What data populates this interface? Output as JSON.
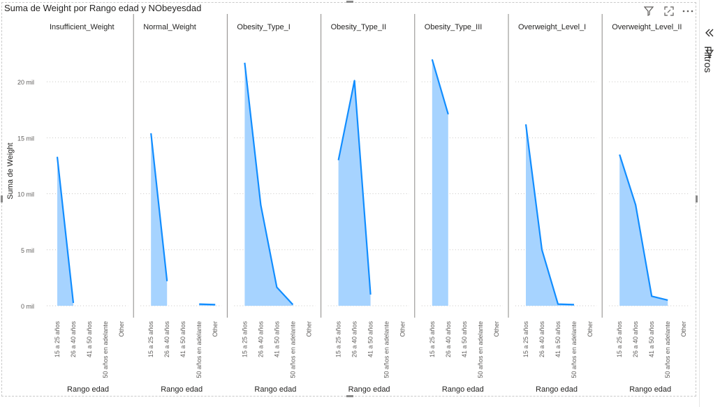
{
  "visual": {
    "title": "Suma de Weight por Rango edad y NObeyesdad",
    "icons": [
      "filter-icon",
      "focus-mode-icon",
      "more-options-icon"
    ]
  },
  "filters_pane": {
    "label": "Filtros",
    "collapse_icon": "double-chevron-left-icon",
    "filter_icon": "filter-icon"
  },
  "chart_data": {
    "type": "area",
    "title": "Suma de Weight por Rango edad y NObeyesdad",
    "xlabel": "Rango edad",
    "ylabel": "Suma de Weight",
    "categories": [
      "15 a 25 años",
      "26 a 40 años",
      "41 a 50 años",
      "50 años en adelante",
      "Other"
    ],
    "yticks": [
      0,
      5000,
      10000,
      15000,
      20000
    ],
    "ytick_labels": [
      "0 mil",
      "5 mil",
      "10 mil",
      "15 mil",
      "20 mil"
    ],
    "ylim": [
      0,
      22500
    ],
    "grid": true,
    "color": "#118dff",
    "fill_color": "#a6d3ff",
    "panels": [
      {
        "name": "Insufficient_Weight",
        "values": [
          13300,
          250,
          null,
          null,
          null
        ]
      },
      {
        "name": "Normal_Weight",
        "values": [
          15400,
          2200,
          null,
          150,
          100
        ]
      },
      {
        "name": "Obesity_Type_I",
        "values": [
          21700,
          9000,
          1650,
          100,
          null
        ]
      },
      {
        "name": "Obesity_Type_II",
        "values": [
          13000,
          20100,
          1000,
          null,
          null
        ]
      },
      {
        "name": "Obesity_Type_III",
        "values": [
          22000,
          17100,
          null,
          null,
          null
        ]
      },
      {
        "name": "Overweight_Level_I",
        "values": [
          16200,
          5000,
          150,
          100,
          null
        ]
      },
      {
        "name": "Overweight_Level_II",
        "values": [
          13500,
          9000,
          850,
          500,
          null
        ]
      }
    ]
  }
}
